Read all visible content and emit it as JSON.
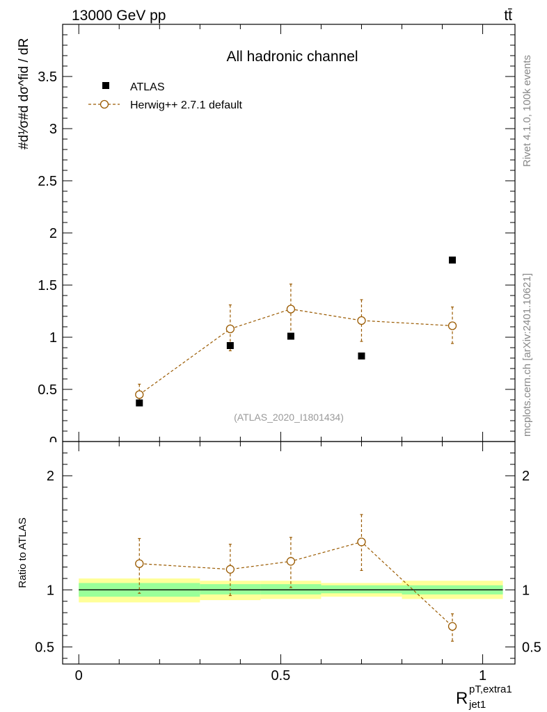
{
  "header": {
    "energy_label": "13000 GeV pp",
    "process_label": "tt̄"
  },
  "side_labels": {
    "rivet": "Rivet 4.1.0,  100k events",
    "mcplots": "mcplots.cern.ch [arXiv:2401.10621]"
  },
  "top_panel": {
    "channel_title": "All hadronic channel",
    "analysis_id": "(ATLAS_2020_I1801434)",
    "ylabel": "#d¹⁄σ#d dσ^fid / dR",
    "legend": {
      "data_label": "ATLAS",
      "mc_label": "Herwig++ 2.7.1 default"
    }
  },
  "bottom_panel": {
    "ylabel": "Ratio to ATLAS"
  },
  "xaxis": {
    "label_main": "R",
    "label_sup": "pT,extra1",
    "label_sub": "jet1"
  },
  "colors": {
    "mc": "#9a5a00",
    "band_inner": "#99ff99",
    "band_outer": "#ffff99"
  },
  "chart_data": [
    {
      "type": "scatter",
      "title": "All hadronic channel",
      "xlim": [
        -0.04,
        1.08
      ],
      "ylim": [
        0,
        4.0
      ],
      "yticks": [
        0.5,
        1,
        1.5,
        2,
        2.5,
        3,
        3.5
      ],
      "ytick_labels": [
        "0.5",
        "1",
        "1.5",
        "2",
        "2.5",
        "3",
        "3.5"
      ],
      "series": [
        {
          "name": "ATLAS",
          "marker": "square",
          "x": [
            0.15,
            0.375,
            0.525,
            0.7,
            0.925
          ],
          "y": [
            0.37,
            0.92,
            1.01,
            0.82,
            1.74
          ]
        },
        {
          "name": "Herwig++ 2.7.1 default",
          "marker": "open-circle",
          "line": "dashed",
          "x": [
            0.15,
            0.375,
            0.525,
            0.7,
            0.925
          ],
          "y": [
            0.45,
            1.08,
            1.27,
            1.16,
            1.11
          ],
          "yerr_low": [
            0.06,
            0.21,
            0.25,
            0.2,
            0.17
          ],
          "yerr_high": [
            0.1,
            0.23,
            0.24,
            0.2,
            0.18
          ]
        }
      ]
    },
    {
      "type": "scatter",
      "ylabel": "Ratio to ATLAS",
      "xlim": [
        -0.04,
        1.08
      ],
      "ylim": [
        0.35,
        2.3
      ],
      "xticks": [
        0,
        0.5,
        1
      ],
      "xtick_labels": [
        "0",
        "0.5",
        "1"
      ],
      "yticks": [
        0.5,
        1,
        2
      ],
      "ytick_labels": [
        "0.5",
        "1",
        "2"
      ],
      "bands": [
        {
          "x0": 0.0,
          "x1": 0.3,
          "inner": [
            0.94,
            1.06
          ],
          "outer": [
            0.89,
            1.1
          ]
        },
        {
          "x0": 0.3,
          "x1": 0.45,
          "inner": [
            0.96,
            1.05
          ],
          "outer": [
            0.91,
            1.08
          ]
        },
        {
          "x0": 0.45,
          "x1": 0.6,
          "inner": [
            0.96,
            1.05
          ],
          "outer": [
            0.92,
            1.08
          ]
        },
        {
          "x0": 0.6,
          "x1": 0.8,
          "inner": [
            0.97,
            1.04
          ],
          "outer": [
            0.94,
            1.06
          ]
        },
        {
          "x0": 0.8,
          "x1": 1.05,
          "inner": [
            0.96,
            1.04
          ],
          "outer": [
            0.92,
            1.08
          ]
        }
      ],
      "series": [
        {
          "name": "Herwig++ 2.7.1 default",
          "x": [
            0.15,
            0.375,
            0.525,
            0.7,
            0.925
          ],
          "y": [
            1.23,
            1.18,
            1.25,
            1.42,
            0.68
          ],
          "yerr_low": [
            0.26,
            0.23,
            0.23,
            0.25,
            0.13
          ],
          "yerr_high": [
            0.22,
            0.22,
            0.21,
            0.24,
            0.11
          ]
        }
      ]
    }
  ]
}
